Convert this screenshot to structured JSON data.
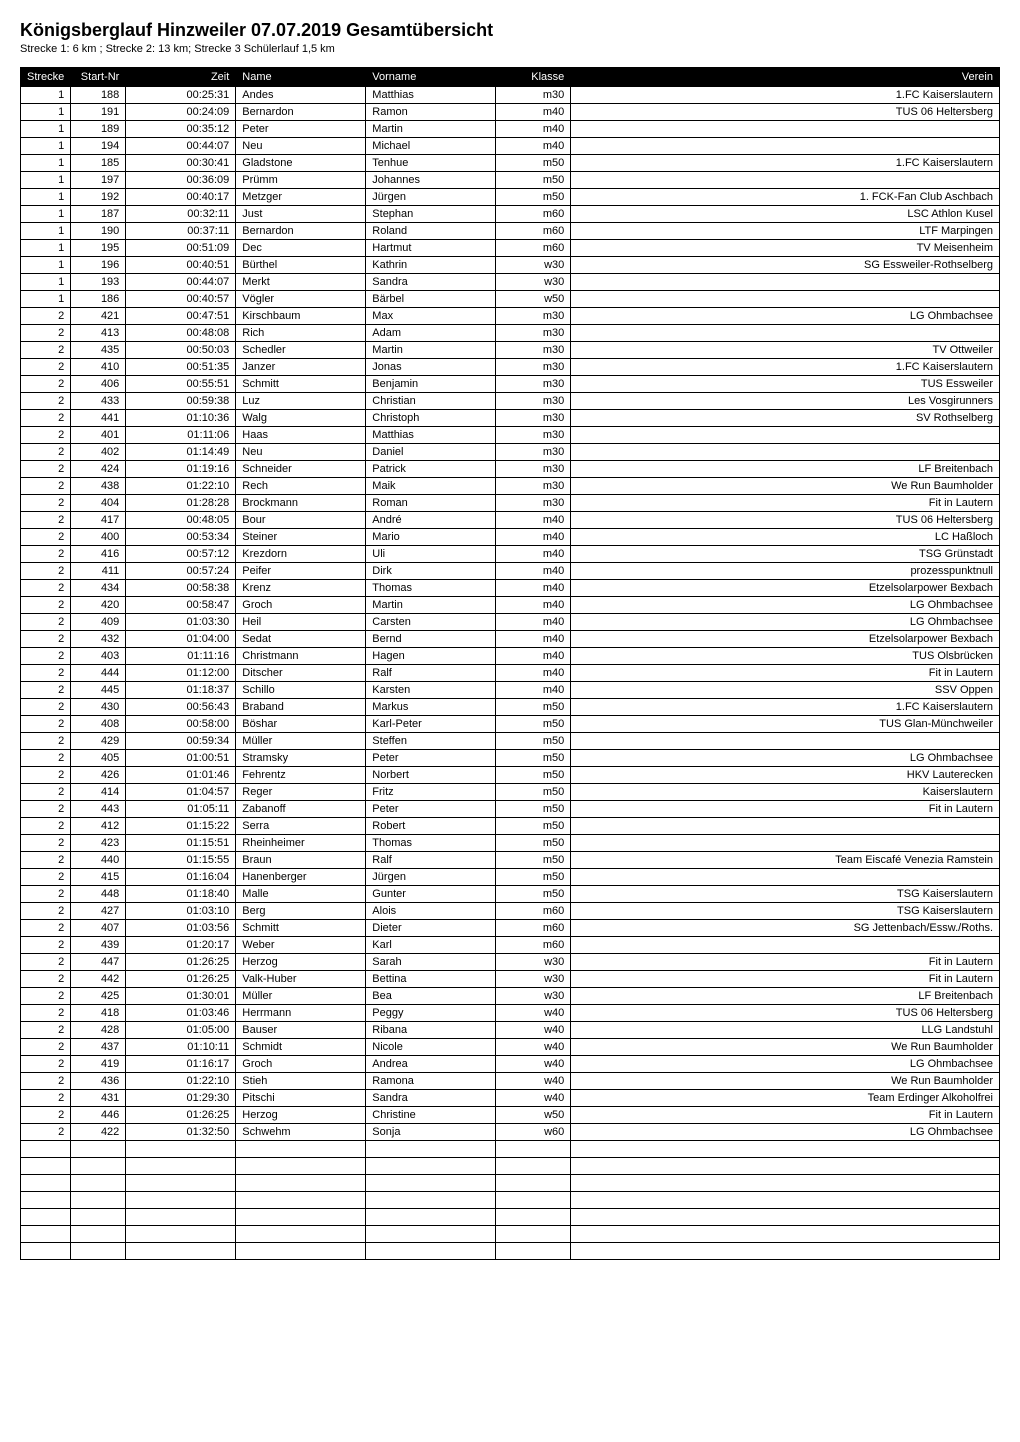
{
  "title": "Königsberglauf Hinzweiler 07.07.2019 Gesamtübersicht",
  "subtitle": "Strecke 1: 6 km ; Strecke 2: 13 km; Strecke 3 Schülerlauf 1,5 km",
  "table": {
    "columns": [
      "Strecke",
      "Start-Nr",
      "Zeit",
      "Name",
      "Vorname",
      "Klasse",
      "Verein"
    ],
    "column_align": [
      "right",
      "right",
      "right",
      "left",
      "left",
      "right",
      "right"
    ],
    "column_widths": [
      "50px",
      "55px",
      "110px",
      "130px",
      "130px",
      "75px",
      "auto"
    ],
    "header_bg": "#000000",
    "header_fg": "#ffffff",
    "border_color": "#000000",
    "fontsize": 11,
    "rows": [
      [
        "1",
        "188",
        "00:25:31",
        "Andes",
        "Matthias",
        "m30",
        "1.FC Kaiserslautern"
      ],
      [
        "1",
        "191",
        "00:24:09",
        "Bernardon",
        "Ramon",
        "m40",
        "TUS 06 Heltersberg"
      ],
      [
        "1",
        "189",
        "00:35:12",
        "Peter",
        "Martin",
        "m40",
        ""
      ],
      [
        "1",
        "194",
        "00:44:07",
        "Neu",
        "Michael",
        "m40",
        ""
      ],
      [
        "1",
        "185",
        "00:30:41",
        "Gladstone",
        "Tenhue",
        "m50",
        "1.FC Kaiserslautern"
      ],
      [
        "1",
        "197",
        "00:36:09",
        "Prümm",
        "Johannes",
        "m50",
        ""
      ],
      [
        "1",
        "192",
        "00:40:17",
        "Metzger",
        "Jürgen",
        "m50",
        "1. FCK-Fan Club Aschbach"
      ],
      [
        "1",
        "187",
        "00:32:11",
        "Just",
        "Stephan",
        "m60",
        "LSC Athlon Kusel"
      ],
      [
        "1",
        "190",
        "00:37:11",
        "Bernardon",
        "Roland",
        "m60",
        "LTF Marpingen"
      ],
      [
        "1",
        "195",
        "00:51:09",
        "Dec",
        "Hartmut",
        "m60",
        "TV Meisenheim"
      ],
      [
        "1",
        "196",
        "00:40:51",
        "Bürthel",
        "Kathrin",
        "w30",
        "SG Essweiler-Rothselberg"
      ],
      [
        "1",
        "193",
        "00:44:07",
        "Merkt",
        "Sandra",
        "w30",
        ""
      ],
      [
        "1",
        "186",
        "00:40:57",
        "Vögler",
        "Bärbel",
        "w50",
        ""
      ],
      [
        "2",
        "421",
        "00:47:51",
        "Kirschbaum",
        "Max",
        "m30",
        "LG Ohmbachsee"
      ],
      [
        "2",
        "413",
        "00:48:08",
        "Rich",
        "Adam",
        "m30",
        ""
      ],
      [
        "2",
        "435",
        "00:50:03",
        "Schedler",
        "Martin",
        "m30",
        "TV Ottweiler"
      ],
      [
        "2",
        "410",
        "00:51:35",
        "Janzer",
        "Jonas",
        "m30",
        "1.FC Kaiserslautern"
      ],
      [
        "2",
        "406",
        "00:55:51",
        "Schmitt",
        "Benjamin",
        "m30",
        "TUS Essweiler"
      ],
      [
        "2",
        "433",
        "00:59:38",
        "Luz",
        "Christian",
        "m30",
        "Les Vosgirunners"
      ],
      [
        "2",
        "441",
        "01:10:36",
        "Walg",
        "Christoph",
        "m30",
        "SV Rothselberg"
      ],
      [
        "2",
        "401",
        "01:11:06",
        "Haas",
        "Matthias",
        "m30",
        ""
      ],
      [
        "2",
        "402",
        "01:14:49",
        "Neu",
        "Daniel",
        "m30",
        ""
      ],
      [
        "2",
        "424",
        "01:19:16",
        "Schneider",
        "Patrick",
        "m30",
        "LF Breitenbach"
      ],
      [
        "2",
        "438",
        "01:22:10",
        "Rech",
        "Maik",
        "m30",
        "We Run Baumholder"
      ],
      [
        "2",
        "404",
        "01:28:28",
        "Brockmann",
        "Roman",
        "m30",
        "Fit in Lautern"
      ],
      [
        "2",
        "417",
        "00:48:05",
        "Bour",
        "André",
        "m40",
        "TUS 06 Heltersberg"
      ],
      [
        "2",
        "400",
        "00:53:34",
        "Steiner",
        "Mario",
        "m40",
        "LC Haßloch"
      ],
      [
        "2",
        "416",
        "00:57:12",
        "Krezdorn",
        "Uli",
        "m40",
        "TSG Grünstadt"
      ],
      [
        "2",
        "411",
        "00:57:24",
        "Peifer",
        "Dirk",
        "m40",
        "prozesspunktnull"
      ],
      [
        "2",
        "434",
        "00:58:38",
        "Krenz",
        "Thomas",
        "m40",
        "Etzelsolarpower Bexbach"
      ],
      [
        "2",
        "420",
        "00:58:47",
        "Groch",
        "Martin",
        "m40",
        "LG Ohmbachsee"
      ],
      [
        "2",
        "409",
        "01:03:30",
        "Heil",
        "Carsten",
        "m40",
        "LG Ohmbachsee"
      ],
      [
        "2",
        "432",
        "01:04:00",
        "Sedat",
        "Bernd",
        "m40",
        "Etzelsolarpower Bexbach"
      ],
      [
        "2",
        "403",
        "01:11:16",
        "Christmann",
        "Hagen",
        "m40",
        "TUS Olsbrücken"
      ],
      [
        "2",
        "444",
        "01:12:00",
        "Ditscher",
        "Ralf",
        "m40",
        "Fit in Lautern"
      ],
      [
        "2",
        "445",
        "01:18:37",
        "Schillo",
        "Karsten",
        "m40",
        "SSV Oppen"
      ],
      [
        "2",
        "430",
        "00:56:43",
        "Braband",
        "Markus",
        "m50",
        "1.FC Kaiserslautern"
      ],
      [
        "2",
        "408",
        "00:58:00",
        "Böshar",
        "Karl-Peter",
        "m50",
        "TUS Glan-Münchweiler"
      ],
      [
        "2",
        "429",
        "00:59:34",
        "Müller",
        "Steffen",
        "m50",
        ""
      ],
      [
        "2",
        "405",
        "01:00:51",
        "Stramsky",
        "Peter",
        "m50",
        "LG Ohmbachsee"
      ],
      [
        "2",
        "426",
        "01:01:46",
        "Fehrentz",
        "Norbert",
        "m50",
        "HKV Lauterecken"
      ],
      [
        "2",
        "414",
        "01:04:57",
        "Reger",
        "Fritz",
        "m50",
        "Kaiserslautern"
      ],
      [
        "2",
        "443",
        "01:05:11",
        "Zabanoff",
        "Peter",
        "m50",
        "Fit in Lautern"
      ],
      [
        "2",
        "412",
        "01:15:22",
        "Serra",
        "Robert",
        "m50",
        ""
      ],
      [
        "2",
        "423",
        "01:15:51",
        "Rheinheimer",
        "Thomas",
        "m50",
        ""
      ],
      [
        "2",
        "440",
        "01:15:55",
        "Braun",
        "Ralf",
        "m50",
        "Team Eiscafé Venezia Ramstein"
      ],
      [
        "2",
        "415",
        "01:16:04",
        "Hanenberger",
        "Jürgen",
        "m50",
        ""
      ],
      [
        "2",
        "448",
        "01:18:40",
        "Malle",
        "Gunter",
        "m50",
        "TSG Kaiserslautern"
      ],
      [
        "2",
        "427",
        "01:03:10",
        "Berg",
        "Alois",
        "m60",
        "TSG Kaiserslautern"
      ],
      [
        "2",
        "407",
        "01:03:56",
        "Schmitt",
        "Dieter",
        "m60",
        "SG Jettenbach/Essw./Roths."
      ],
      [
        "2",
        "439",
        "01:20:17",
        "Weber",
        "Karl",
        "m60",
        ""
      ],
      [
        "2",
        "447",
        "01:26:25",
        "Herzog",
        "Sarah",
        "w30",
        "Fit in Lautern"
      ],
      [
        "2",
        "442",
        "01:26:25",
        "Valk-Huber",
        "Bettina",
        "w30",
        "Fit in Lautern"
      ],
      [
        "2",
        "425",
        "01:30:01",
        "Müller",
        "Bea",
        "w30",
        "LF Breitenbach"
      ],
      [
        "2",
        "418",
        "01:03:46",
        "Herrmann",
        "Peggy",
        "w40",
        "TUS 06 Heltersberg"
      ],
      [
        "2",
        "428",
        "01:05:00",
        "Bauser",
        "Ribana",
        "w40",
        "LLG Landstuhl"
      ],
      [
        "2",
        "437",
        "01:10:11",
        "Schmidt",
        "Nicole",
        "w40",
        "We Run Baumholder"
      ],
      [
        "2",
        "419",
        "01:16:17",
        "Groch",
        "Andrea",
        "w40",
        "LG Ohmbachsee"
      ],
      [
        "2",
        "436",
        "01:22:10",
        "Stieh",
        "Ramona",
        "w40",
        "We Run Baumholder"
      ],
      [
        "2",
        "431",
        "01:29:30",
        "Pitschi",
        "Sandra",
        "w40",
        "Team Erdinger Alkoholfrei"
      ],
      [
        "2",
        "446",
        "01:26:25",
        "Herzog",
        "Christine",
        "w50",
        "Fit in Lautern"
      ],
      [
        "2",
        "422",
        "01:32:50",
        "Schwehm",
        "Sonja",
        "w60",
        "LG Ohmbachsee"
      ]
    ],
    "empty_rows": 7
  }
}
